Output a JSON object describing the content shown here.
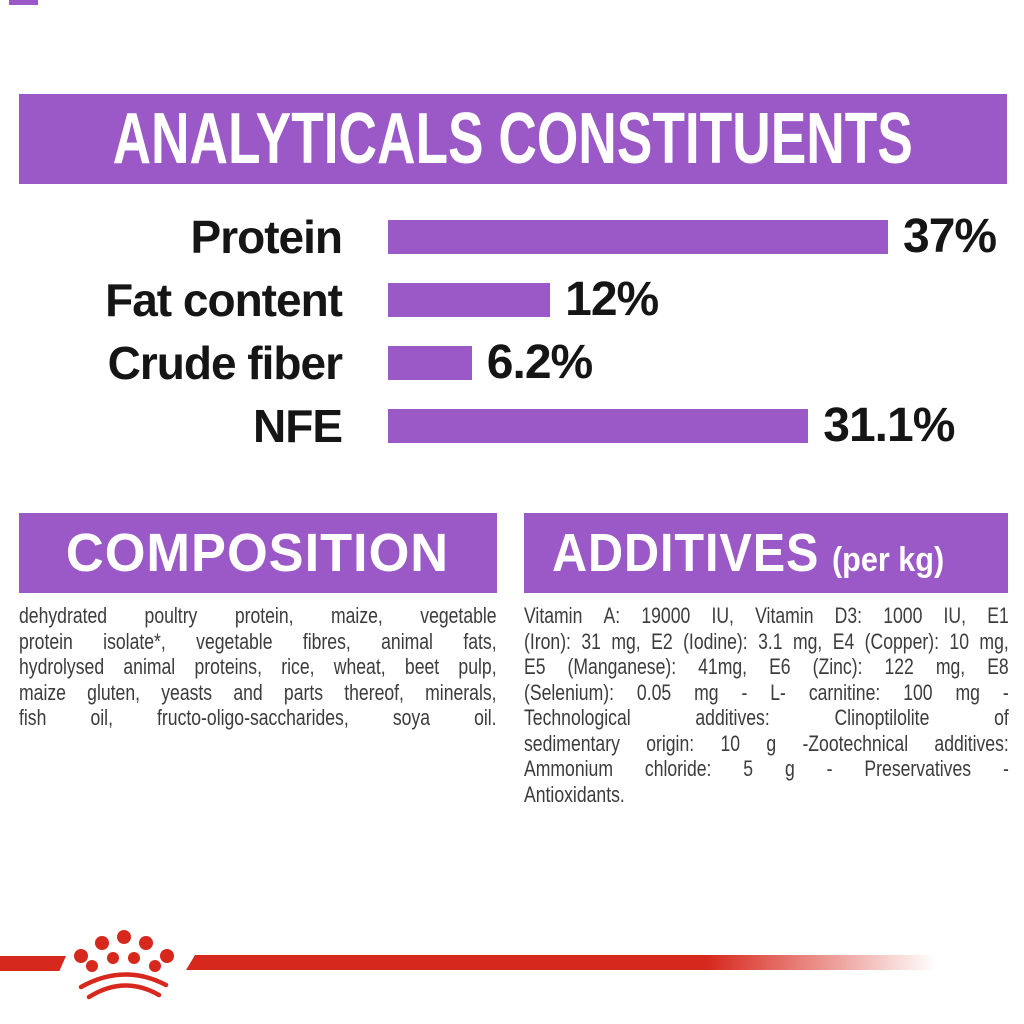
{
  "colors": {
    "purple": "#9B58C7",
    "red": "#D7281D",
    "label_black": "#151515",
    "body_text": "#3C3C3C"
  },
  "header": {
    "title": "ANALYTICALS CONSTITUENTS"
  },
  "chart_data": {
    "type": "bar",
    "orientation": "horizontal",
    "title": "ANALYTICALS CONSTITUENTS",
    "categories": [
      "Protein",
      "Fat content",
      "Crude fiber",
      "NFE"
    ],
    "values": [
      37,
      12,
      6.2,
      31.1
    ],
    "value_labels": [
      "37%",
      "12%",
      "6.2%",
      "31.1%"
    ],
    "unit": "%",
    "max_value": 37,
    "bar_color": "#9B58C7",
    "axis": "none",
    "grid": false,
    "legend": false
  },
  "composition": {
    "heading": "COMPOSITION",
    "lines": [
      "dehydrated poultry protein, maize, vegetable",
      "protein isolate*, vegetable fibres, animal fats,",
      "hydrolysed animal proteins, rice, wheat, beet pulp,",
      "maize gluten, yeasts and parts thereof, minerals,",
      "fish oil, fructo-oligo-saccharides, soya oil."
    ]
  },
  "additives": {
    "heading": "ADDITIVES",
    "heading_suffix": "(per kg)",
    "lines": [
      "Vitamin A: 19000 IU, Vitamin D3: 1000 IU, E1",
      "(Iron): 31 mg, E2 (Iodine): 3.1 mg, E4 (Copper): 10 mg,",
      "E5 (Manganese): 41mg, E6 (Zinc): 122 mg, E8",
      "(Selenium): 0.05 mg - L- carnitine: 100 mg -",
      "Technological additives: Clinoptilolite of",
      "sedimentary origin: 10 g -Zootechnical additives:",
      "Ammonium chloride: 5 g - Preservatives -",
      "Antioxidants."
    ]
  },
  "footer": {
    "logo": "royal-canin-crown-paw"
  }
}
